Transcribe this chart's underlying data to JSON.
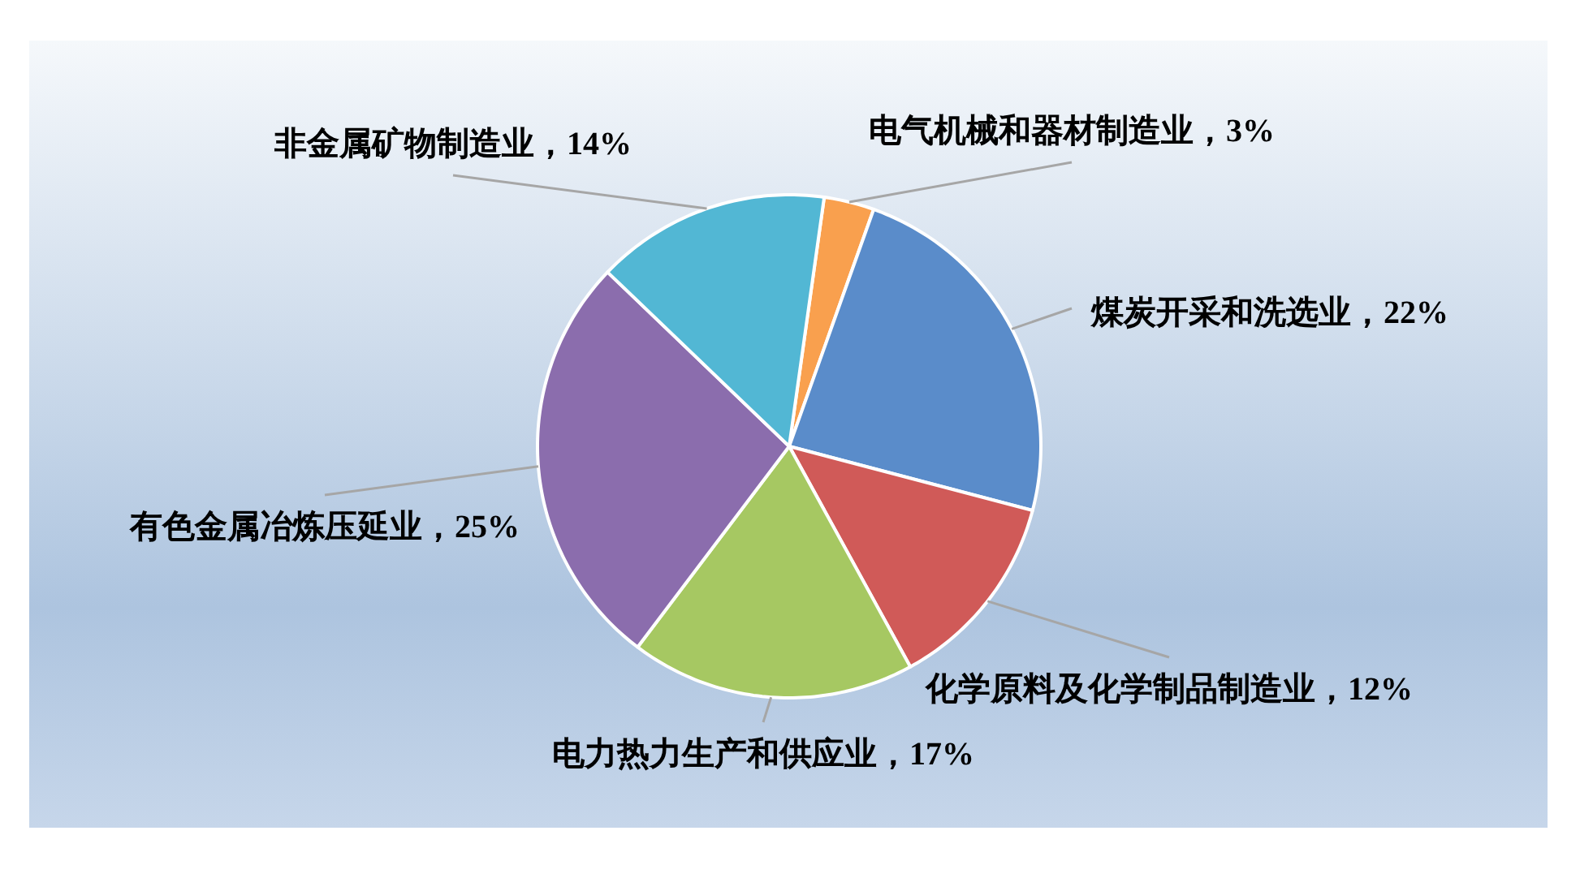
{
  "chart_data": {
    "type": "pie",
    "categories": [
      "电气机械和器材制造业",
      "煤炭开采和洗选业",
      "化学原料及化学制品制造业",
      "电力热力生产和供应业",
      "有色金属冶炼压延业",
      "非金属矿物制造业"
    ],
    "values": [
      3,
      22,
      12,
      17,
      25,
      14
    ],
    "colors": [
      "#f9a04e",
      "#5a8cca",
      "#d05a58",
      "#a6c862",
      "#8b6dad",
      "#52b7d4"
    ],
    "value_labels": [
      "，3%",
      "，22%",
      "，12%",
      "，17%",
      "，25%",
      "，14%"
    ]
  }
}
